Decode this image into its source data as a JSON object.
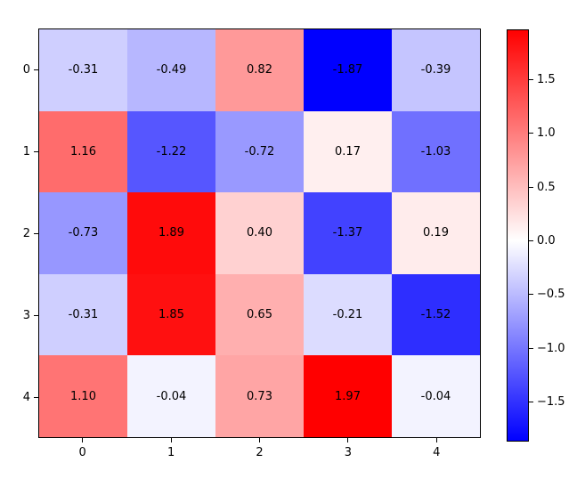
{
  "chart_data": {
    "type": "heatmap",
    "title": "",
    "xlabel": "",
    "ylabel": "",
    "colormap": "bwr",
    "vmin": -1.87,
    "vmax": 1.97,
    "x_tick_labels": [
      "0",
      "1",
      "2",
      "3",
      "4"
    ],
    "y_tick_labels": [
      "0",
      "1",
      "2",
      "3",
      "4"
    ],
    "values": [
      [
        -0.31,
        -0.49,
        0.82,
        -1.87,
        -0.39
      ],
      [
        1.16,
        -1.22,
        -0.72,
        0.17,
        -1.03
      ],
      [
        -0.73,
        1.89,
        0.4,
        -1.37,
        0.19
      ],
      [
        -0.31,
        1.85,
        0.65,
        -0.21,
        -1.52
      ],
      [
        1.1,
        -0.04,
        0.73,
        1.97,
        -0.04
      ]
    ],
    "cell_labels": [
      [
        "-0.31",
        "-0.49",
        "0.82",
        "-1.87",
        "-0.39"
      ],
      [
        "1.16",
        "-1.22",
        "-0.72",
        "0.17",
        "-1.03"
      ],
      [
        "-0.73",
        "1.89",
        "0.40",
        "-1.37",
        "0.19"
      ],
      [
        "-0.31",
        "1.85",
        "0.65",
        "-0.21",
        "-1.52"
      ],
      [
        "1.10",
        "-0.04",
        "0.73",
        "1.97",
        "-0.04"
      ]
    ],
    "colorbar": {
      "tick_labels": [
        "1.5",
        "1.0",
        "0.5",
        "0.0",
        "−0.5",
        "−1.0",
        "−1.5"
      ],
      "tick_values": [
        1.5,
        1.0,
        0.5,
        0.0,
        -0.5,
        -1.0,
        -1.5
      ],
      "color_top": "#ff0000",
      "color_mid": "#ffffff",
      "color_bottom": "#0000ff"
    },
    "grid": false,
    "legend": false
  }
}
